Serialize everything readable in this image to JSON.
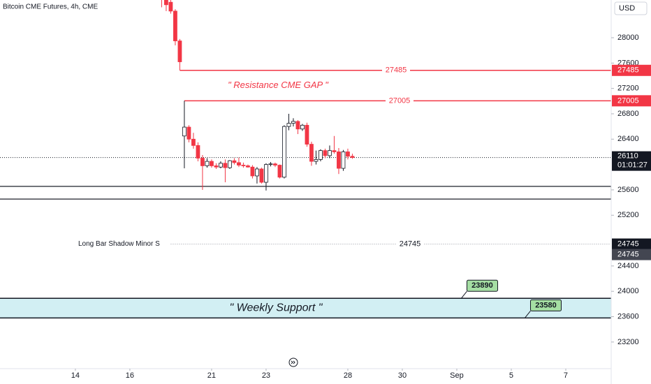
{
  "chart_data": {
    "type": "candlestick",
    "title": "Bitcoin CME Futures, 4h, CME",
    "currency": "USD",
    "x": [
      19,
      20,
      21,
      22,
      23,
      24,
      25,
      26,
      27,
      28,
      29,
      30,
      31,
      32,
      33,
      34,
      35,
      36,
      37,
      38,
      39,
      40,
      41,
      42,
      43,
      44,
      45,
      46,
      47,
      48,
      49,
      50,
      51,
      52,
      53,
      54,
      55,
      56,
      57,
      58,
      59,
      60,
      61
    ],
    "open": [
      28650,
      28600,
      28560,
      28420,
      27950,
      26450,
      26590,
      26400,
      26300,
      26100,
      25980,
      26050,
      25980,
      25960,
      26020,
      25950,
      26060,
      26030,
      25990,
      25980,
      25960,
      25820,
      25930,
      25720,
      26000,
      26010,
      25990,
      25800,
      26600,
      26650,
      26680,
      26560,
      26620,
      26320,
      26050,
      26080,
      26220,
      26140,
      26220,
      26200,
      25940,
      26200,
      26130
    ],
    "high": [
      28700,
      28650,
      28600,
      28450,
      27980,
      27005,
      26620,
      26500,
      26350,
      26150,
      26100,
      26080,
      26020,
      26050,
      26080,
      26070,
      26100,
      26110,
      26030,
      26000,
      25990,
      25960,
      25950,
      26020,
      26040,
      26030,
      26000,
      26620,
      26800,
      26730,
      26700,
      26640,
      26660,
      26360,
      26220,
      26240,
      26250,
      26300,
      26450,
      26260,
      26230,
      26250,
      26170
    ],
    "low": [
      28480,
      28420,
      28380,
      27880,
      27485,
      25940,
      26350,
      26250,
      26050,
      25600,
      25950,
      25950,
      25930,
      25940,
      25720,
      25930,
      26000,
      25960,
      25950,
      25950,
      25780,
      25700,
      25700,
      25590,
      25970,
      25960,
      25780,
      25780,
      26540,
      26600,
      26480,
      26530,
      26280,
      25980,
      26000,
      26050,
      26100,
      26100,
      26170,
      25850,
      25900,
      26080,
      26090
    ],
    "close": [
      28600,
      28520,
      28420,
      27950,
      27620,
      26590,
      26400,
      26300,
      26100,
      25980,
      26050,
      25980,
      25960,
      26020,
      25950,
      26060,
      26030,
      25990,
      25980,
      25960,
      25820,
      25930,
      25720,
      26000,
      26010,
      25990,
      25800,
      26600,
      26650,
      26680,
      26560,
      26620,
      26320,
      26050,
      26080,
      26220,
      26140,
      26220,
      26200,
      25940,
      26200,
      26130,
      26110
    ],
    "up_color": "#ffffff",
    "down_color": "#f23645",
    "xlim": [
      -16.6,
      118
    ],
    "xticks": [
      {
        "value": 0,
        "label": "14"
      },
      {
        "value": 12,
        "label": "16"
      },
      {
        "value": 30,
        "label": "21"
      },
      {
        "value": 42,
        "label": "23"
      },
      {
        "value": 60,
        "label": "28"
      },
      {
        "value": 72,
        "label": "30"
      },
      {
        "value": 84,
        "label": "Sep"
      },
      {
        "value": 96,
        "label": "5"
      },
      {
        "value": 108,
        "label": "7"
      }
    ],
    "ylim": [
      22780,
      28595
    ],
    "yticks": [
      28000,
      27600,
      27200,
      26800,
      26400,
      25600,
      25200,
      24400,
      24000,
      23600,
      23200
    ],
    "grid": false,
    "last_price": 26110,
    "countdown": "01:01:27",
    "levels": [
      {
        "value": 27485,
        "from": 23,
        "color": "#f23645",
        "style": "solid"
      },
      {
        "value": 27005,
        "from": 24,
        "color": "#f23645",
        "style": "solid"
      },
      {
        "value": 24745,
        "from": 21,
        "color": "#9598a1",
        "style": "dotted",
        "text": "Long Bar Shadow Minor S"
      }
    ],
    "resistance_note": "\" Resistance CME GAP  \"",
    "range_box": {
      "top": 25655,
      "bottom": 25455
    },
    "support_zone": {
      "top": 23890,
      "bottom": 23580,
      "color": "#d2eff3",
      "text": "\" Weekly Support \"",
      "label_x": [
        85,
        99
      ],
      "label_color": "#a5dea3"
    }
  }
}
